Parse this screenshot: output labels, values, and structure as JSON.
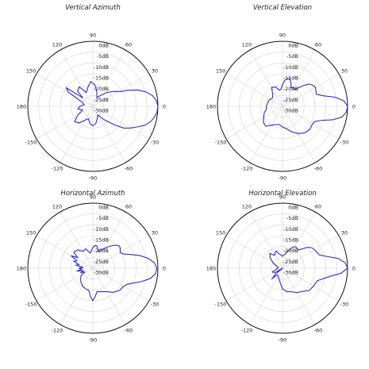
{
  "chart_data": [
    {
      "type": "polar",
      "title": "Vertical Azimuth",
      "angle_labels": [
        "90",
        "60",
        "30",
        "0",
        "-30",
        "-60",
        "-90",
        "-120",
        "-150",
        "180",
        "150",
        "120"
      ],
      "radial_labels": [
        "0dB",
        "-5dB",
        "-10dB",
        "-15dB",
        "-20dB",
        "-25dB",
        "-30dB"
      ],
      "rlim_db": [
        -30,
        0
      ],
      "grid": true,
      "series": [
        {
          "color": "#2b2bd6",
          "angles_deg": [
            0,
            5,
            10,
            15,
            20,
            25,
            28,
            35,
            45,
            55,
            65,
            75,
            85,
            95,
            105,
            115,
            125,
            135,
            140,
            142,
            145,
            150,
            160,
            170,
            180,
            190,
            200,
            210,
            220,
            230,
            240,
            250,
            260,
            270,
            280,
            290,
            300,
            310,
            315,
            320,
            325,
            330,
            335,
            340,
            345,
            350,
            355
          ],
          "gain_db": [
            0,
            -0.6,
            -2,
            -4.5,
            -8,
            -12.5,
            -15.5,
            -18,
            -21,
            -24,
            -25.5,
            -23,
            -20,
            -18.5,
            -21,
            -23,
            -19,
            -20,
            -24,
            -22,
            -15,
            -17,
            -25,
            -26,
            -24,
            -23,
            -25,
            -22,
            -19,
            -20,
            -22.5,
            -24,
            -22,
            -21,
            -22,
            -24,
            -25.5,
            -22,
            -20,
            -16.5,
            -12.5,
            -10,
            -7.5,
            -4.5,
            -2.5,
            -1.2,
            -0.3
          ]
        }
      ]
    },
    {
      "type": "polar",
      "title": "Vertical Elevation",
      "angle_labels": [
        "90",
        "60",
        "30",
        "0",
        "-30",
        "-60",
        "-90",
        "-120",
        "-150",
        "180",
        "150",
        "120"
      ],
      "radial_labels": [
        "0dB",
        "-5dB",
        "-10dB",
        "-15dB",
        "-20dB",
        "-25dB",
        "-30dB"
      ],
      "rlim_db": [
        -30,
        0
      ],
      "grid": true,
      "series": [
        {
          "color": "#2b2bd6",
          "angles_deg": [
            0,
            5,
            10,
            15,
            20,
            25,
            30,
            35,
            40,
            45,
            50,
            55,
            60,
            65,
            70,
            75,
            80,
            85,
            90,
            95,
            100,
            110,
            120,
            130,
            140,
            150,
            160,
            170,
            180,
            190,
            200,
            210,
            220,
            230,
            240,
            250,
            260,
            270,
            280,
            290,
            300,
            310,
            320,
            330,
            335,
            340,
            345,
            350,
            355
          ],
          "gain_db": [
            0,
            -1.5,
            -5.5,
            -11,
            -13.5,
            -13,
            -12.5,
            -13,
            -14,
            -16.5,
            -19,
            -20.5,
            -20,
            -20.5,
            -18.5,
            -17,
            -17,
            -18,
            -20,
            -22,
            -22.5,
            -20.5,
            -20,
            -23,
            -24,
            -23.5,
            -23,
            -23,
            -22.5,
            -22.5,
            -21,
            -20,
            -18.5,
            -18,
            -20,
            -21,
            -21.5,
            -20.5,
            -19.5,
            -17.5,
            -15.5,
            -14,
            -13.5,
            -14,
            -13.5,
            -11,
            -6,
            -2,
            -0.5
          ]
        }
      ]
    },
    {
      "type": "polar",
      "title": "Horizontal Azimuth",
      "angle_labels": [
        "90",
        "60",
        "30",
        "0",
        "-30",
        "-60",
        "-90",
        "-120",
        "-150",
        "180",
        "150",
        "120"
      ],
      "radial_labels": [
        "0dB",
        "-5dB",
        "-10dB",
        "-15dB",
        "-20dB",
        "-25dB",
        "-30dB"
      ],
      "rlim_db": [
        -30,
        0
      ],
      "grid": true,
      "series": [
        {
          "color": "#2b2bd6",
          "angles_deg": [
            0,
            5,
            10,
            15,
            20,
            25,
            30,
            35,
            40,
            45,
            50,
            55,
            60,
            65,
            70,
            75,
            80,
            85,
            90,
            95,
            100,
            110,
            120,
            130,
            140,
            145,
            150,
            155,
            160,
            165,
            170,
            175,
            180,
            185,
            190,
            195,
            200,
            205,
            210,
            220,
            230,
            240,
            250,
            260,
            265,
            270,
            275,
            280,
            290,
            300,
            310,
            320,
            330,
            335,
            340,
            345,
            350,
            355
          ],
          "gain_db": [
            -0.5,
            -1.5,
            -4,
            -7.5,
            -11.5,
            -14.5,
            -15.5,
            -14.5,
            -14,
            -15,
            -16.5,
            -18,
            -19.5,
            -20.5,
            -22,
            -21,
            -19.5,
            -19.5,
            -20.5,
            -22,
            -23,
            -20.5,
            -21,
            -19,
            -18.5,
            -21.5,
            -18.5,
            -22,
            -20.5,
            -23.5,
            -22,
            -25.5,
            -23.5,
            -25,
            -22.5,
            -25.5,
            -24,
            -26,
            -24,
            -22.5,
            -21.5,
            -20.5,
            -20,
            -19.5,
            -17,
            -15,
            -17,
            -19,
            -18.5,
            -17.5,
            -15.5,
            -14,
            -13.5,
            -12.5,
            -10,
            -6.5,
            -3,
            -1
          ]
        }
      ]
    },
    {
      "type": "polar",
      "title": "Horizontal Elevation",
      "angle_labels": [
        "90",
        "60",
        "30",
        "0",
        "-30",
        "-60",
        "-90",
        "-120",
        "-150",
        "180",
        "150",
        "120"
      ],
      "radial_labels": [
        "0dB",
        "-5dB",
        "-10dB",
        "-15dB",
        "-20dB",
        "-25dB",
        "-30dB"
      ],
      "rlim_db": [
        -30,
        0
      ],
      "grid": true,
      "series": [
        {
          "color": "#2b2bd6",
          "angles_deg": [
            0,
            5,
            10,
            15,
            20,
            25,
            30,
            35,
            40,
            45,
            50,
            55,
            60,
            65,
            70,
            75,
            80,
            85,
            90,
            95,
            100,
            105,
            110,
            115,
            120,
            125,
            130,
            140,
            150,
            160,
            170,
            180,
            190,
            200,
            210,
            215,
            220,
            225,
            230,
            240,
            250,
            260,
            270,
            280,
            290,
            300,
            310,
            320,
            330,
            340,
            350,
            355
          ],
          "gain_db": [
            0,
            -1,
            -4,
            -9,
            -12,
            -12.5,
            -13,
            -13.5,
            -15,
            -17.5,
            -19,
            -18.5,
            -18.5,
            -19.5,
            -21,
            -22.5,
            -23.5,
            -24,
            -24.5,
            -24,
            -23.5,
            -23,
            -21.5,
            -22,
            -23,
            -22.5,
            -21,
            -22.5,
            -25,
            -27,
            -28,
            -28,
            -27,
            -25,
            -26,
            -30,
            -26,
            -23,
            -26,
            -26,
            -25,
            -23.5,
            -20.5,
            -19,
            -18.5,
            -17,
            -16,
            -14,
            -13.5,
            -13,
            -8,
            -3
          ]
        }
      ]
    }
  ]
}
